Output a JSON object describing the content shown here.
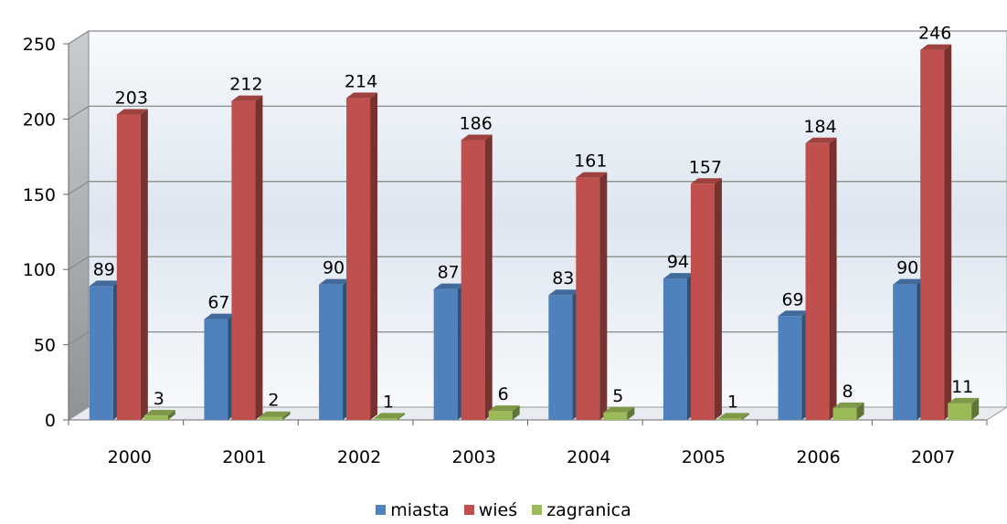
{
  "chart_data": {
    "type": "bar",
    "categories": [
      "2000",
      "2001",
      "2002",
      "2003",
      "2004",
      "2005",
      "2006",
      "2007"
    ],
    "series": [
      {
        "name": "miasta",
        "color": "#4F81BD",
        "values": [
          89,
          67,
          90,
          87,
          83,
          94,
          69,
          90
        ]
      },
      {
        "name": "wieś",
        "color": "#C0504D",
        "values": [
          203,
          212,
          214,
          186,
          161,
          157,
          184,
          246
        ]
      },
      {
        "name": "zagranica",
        "color": "#9BBB59",
        "values": [
          3,
          2,
          1,
          6,
          5,
          1,
          8,
          11
        ]
      }
    ],
    "ylim": [
      0,
      250
    ],
    "yticks": [
      "0",
      "50",
      "100",
      "150",
      "200",
      "250"
    ],
    "grid": true,
    "legend": "bottom",
    "style": "3d"
  }
}
